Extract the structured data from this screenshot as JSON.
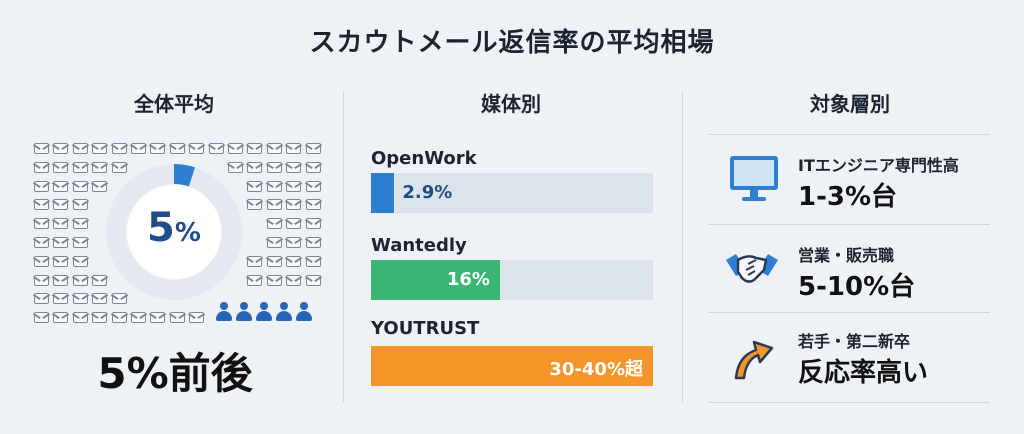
{
  "title": "スカウトメール返信率の平均相場",
  "overall": {
    "heading": "全体平均",
    "donut_value": "5",
    "donut_unit": "%",
    "donut_fraction": 0.05,
    "summary": "5%前後"
  },
  "media": {
    "heading": "媒体別"
  },
  "target": {
    "heading": "対象層別",
    "rows": [
      {
        "sub": "ITエンジニア専門性高",
        "main": "1-3%台",
        "icon": "monitor-icon"
      },
      {
        "sub": "営業・販売職",
        "main": "5-10%台",
        "icon": "handshake-icon"
      },
      {
        "sub": "若手・第二新卒",
        "main": "反応率高い",
        "icon": "up-arrow-icon"
      }
    ]
  },
  "colors": {
    "openwork": "#2f7fd0",
    "wantedly": "#3bb572",
    "youtrust": "#f4962a",
    "donut_accent": "#2f7fd0",
    "donut_track": "#e4e9ef"
  },
  "chart_data": {
    "type": "bar",
    "orientation": "horizontal",
    "categories": [
      "OpenWork",
      "Wantedly",
      "YOUTRUST"
    ],
    "values": [
      2.9,
      16,
      35
    ],
    "value_labels": [
      "2.9%",
      "16%",
      "30-40%超"
    ],
    "xlim": [
      0,
      35
    ],
    "grid": false
  }
}
